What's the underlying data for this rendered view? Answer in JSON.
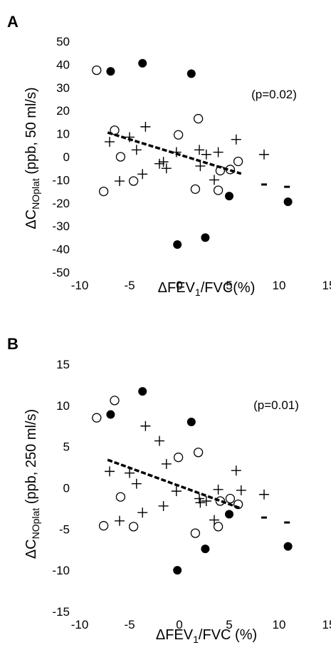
{
  "chart_data": [
    {
      "panel": "A",
      "type": "scatter",
      "xlabel": {
        "pre": "ΔFEV",
        "sub": "1",
        "post": "/FVC(%)"
      },
      "ylabel": {
        "pre": "ΔC",
        "sub": "NOplat",
        "post": " (ppb, 50 ml/s)"
      },
      "annotation": "(p=0.02)",
      "xlim": [
        -10,
        15
      ],
      "ylim": [
        -50,
        50
      ],
      "xticks": [
        -10,
        -5,
        0,
        5,
        10,
        15
      ],
      "yticks": [
        50,
        40,
        30,
        20,
        10,
        0,
        -10,
        -20,
        -30,
        -40,
        -50
      ],
      "grid": false,
      "series": [
        {
          "marker": "filled-circle",
          "points": [
            [
              -6.9,
              37
            ],
            [
              -3.7,
              40.5
            ],
            [
              1.2,
              36
            ],
            [
              5,
              -17
            ],
            [
              2.6,
              -35
            ],
            [
              -0.2,
              -38
            ],
            [
              10.9,
              -19.5
            ]
          ]
        },
        {
          "marker": "open-circle",
          "points": [
            [
              -8.3,
              37.5
            ],
            [
              -6.5,
              11.5
            ],
            [
              -0.1,
              9.5
            ],
            [
              1.9,
              16.5
            ],
            [
              -5.9,
              0
            ],
            [
              -7.6,
              -15
            ],
            [
              -4.6,
              -10.5
            ],
            [
              1.6,
              -14
            ],
            [
              3.9,
              -14.5
            ],
            [
              4.1,
              -6
            ],
            [
              5.1,
              -5.5
            ],
            [
              5.9,
              -2
            ]
          ]
        },
        {
          "marker": "plus",
          "points": [
            [
              -7,
              6.5
            ],
            [
              -6,
              -10.5
            ],
            [
              -5,
              8.5
            ],
            [
              -4.3,
              3
            ],
            [
              -3.4,
              13
            ],
            [
              -3.7,
              -7.5
            ],
            [
              -2,
              -3
            ],
            [
              -1.3,
              -5
            ],
            [
              -0.3,
              2
            ],
            [
              -1.6,
              -2.2
            ],
            [
              2,
              3
            ],
            [
              2.1,
              -4
            ],
            [
              2.7,
              1
            ],
            [
              3.5,
              -10
            ],
            [
              3.9,
              2
            ],
            [
              5.7,
              7.5
            ],
            [
              8.5,
              1
            ]
          ]
        },
        {
          "marker": "trend-dashed",
          "points": [
            [
              -7.2,
              10.5
            ],
            [
              6.2,
              -7.3
            ]
          ]
        },
        {
          "marker": "dash",
          "points": [
            [
              8.5,
              -12
            ],
            [
              10.8,
              -13
            ]
          ]
        }
      ]
    },
    {
      "panel": "B",
      "type": "scatter",
      "xlabel": {
        "pre": "ΔFEV",
        "sub": "1",
        "post": "/FVC (%)"
      },
      "ylabel": {
        "pre": "ΔC",
        "sub": "NOplat",
        "post": " (ppb, 250 ml/s)"
      },
      "annotation": "(p=0.01)",
      "xlim": [
        -10,
        15
      ],
      "ylim": [
        -15,
        15
      ],
      "xticks": [
        -10,
        -5,
        0,
        5,
        10,
        15
      ],
      "yticks": [
        15,
        10,
        5,
        0,
        -5,
        -10,
        -15
      ],
      "grid": false,
      "series": [
        {
          "marker": "filled-circle",
          "points": [
            [
              -6.9,
              8.9
            ],
            [
              -3.7,
              11.7
            ],
            [
              1.2,
              8
            ],
            [
              5,
              -3.2
            ],
            [
              2.6,
              -7.4
            ],
            [
              -0.2,
              -10
            ],
            [
              10.9,
              -7.1
            ]
          ]
        },
        {
          "marker": "open-circle",
          "points": [
            [
              -8.3,
              8.5
            ],
            [
              -6.5,
              10.6
            ],
            [
              -0.1,
              3.7
            ],
            [
              1.9,
              4.3
            ],
            [
              -5.9,
              -1.1
            ],
            [
              -7.6,
              -4.6
            ],
            [
              -4.6,
              -4.7
            ],
            [
              1.6,
              -5.5
            ],
            [
              3.9,
              -4.7
            ],
            [
              4.1,
              -1.6
            ],
            [
              5.1,
              -1.3
            ],
            [
              5.9,
              -2
            ]
          ]
        },
        {
          "marker": "plus",
          "points": [
            [
              -7,
              2
            ],
            [
              -6,
              -4
            ],
            [
              -5,
              1.8
            ],
            [
              -4.3,
              0.5
            ],
            [
              -3.4,
              7.5
            ],
            [
              -3.7,
              -3
            ],
            [
              -2,
              5.7
            ],
            [
              -1.3,
              2.9
            ],
            [
              -0.3,
              -0.4
            ],
            [
              -1.6,
              -2.2
            ],
            [
              2,
              -1.3
            ],
            [
              2.1,
              -1.8
            ],
            [
              2.7,
              -1.6
            ],
            [
              3.5,
              -3.9
            ],
            [
              3.9,
              -0.2
            ],
            [
              5.7,
              2.1
            ],
            [
              8.5,
              -0.8
            ],
            [
              6.2,
              -0.3
            ]
          ]
        },
        {
          "marker": "trend-dashed",
          "points": [
            [
              -7.2,
              3.4
            ],
            [
              6.2,
              -2.5
            ]
          ]
        },
        {
          "marker": "dash",
          "points": [
            [
              8.5,
              -3.6
            ],
            [
              10.8,
              -4.2
            ]
          ]
        }
      ]
    }
  ]
}
